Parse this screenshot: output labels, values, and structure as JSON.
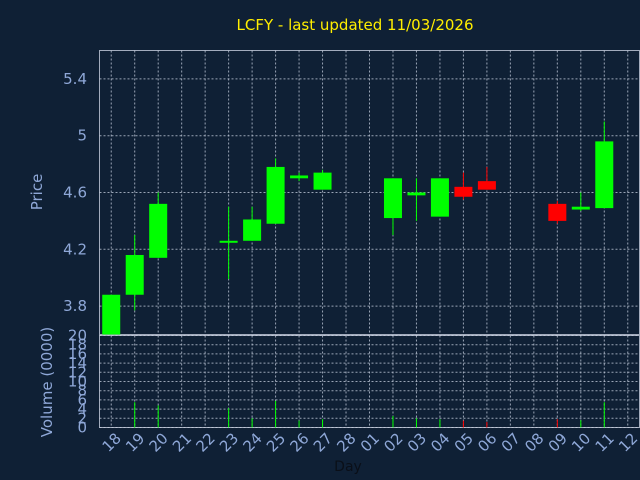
{
  "chart_data": {
    "type": "candlestick",
    "title": "LCFY - last updated 11/03/2026",
    "xlabel": "Day",
    "price_panel": {
      "ylabel": "Price",
      "ylim": [
        3.6,
        5.6
      ],
      "yticks": [
        "3.8",
        "4.2",
        "4.6",
        "5",
        "5.4"
      ],
      "ytick_values": [
        3.8,
        4.2,
        4.6,
        5.0,
        5.4
      ]
    },
    "volume_panel": {
      "ylabel": "Volume (0000)",
      "ylim": [
        0,
        20
      ],
      "yticks": [
        "0",
        "2",
        "4",
        "6",
        "8",
        "10",
        "12",
        "14",
        "16",
        "18",
        "20"
      ],
      "ytick_values": [
        0,
        2,
        4,
        6,
        8,
        10,
        12,
        14,
        16,
        18,
        20
      ]
    },
    "x_labels": [
      "18",
      "19",
      "20",
      "21",
      "22",
      "23",
      "24",
      "25",
      "26",
      "27",
      "28",
      "01",
      "02",
      "03",
      "04",
      "05",
      "06",
      "07",
      "08",
      "09",
      "10",
      "11",
      "12"
    ],
    "candles": [
      {
        "x": 0,
        "open": 3.6,
        "high": 3.88,
        "low": 3.6,
        "close": 3.88,
        "volume": 0
      },
      {
        "x": 1,
        "open": 3.88,
        "high": 4.3,
        "low": 3.77,
        "close": 4.16,
        "volume": 5.5
      },
      {
        "x": 2,
        "open": 4.14,
        "high": 4.6,
        "low": 4.14,
        "close": 4.52,
        "volume": 4.8
      },
      {
        "x": 5,
        "open": 4.25,
        "high": 4.5,
        "low": 3.99,
        "close": 4.26,
        "volume": 4.2
      },
      {
        "x": 6,
        "open": 4.26,
        "high": 4.5,
        "low": 4.26,
        "close": 4.41,
        "volume": 2.0
      },
      {
        "x": 7,
        "open": 4.38,
        "high": 4.84,
        "low": 4.38,
        "close": 4.78,
        "volume": 5.8
      },
      {
        "x": 8,
        "open": 4.7,
        "high": 4.74,
        "low": 4.68,
        "close": 4.72,
        "volume": 1.5
      },
      {
        "x": 9,
        "open": 4.62,
        "high": 4.76,
        "low": 4.62,
        "close": 4.74,
        "volume": 1.8
      },
      {
        "x": 12,
        "open": 4.42,
        "high": 4.7,
        "low": 4.3,
        "close": 4.7,
        "volume": 2.5
      },
      {
        "x": 13,
        "open": 4.58,
        "high": 4.7,
        "low": 4.4,
        "close": 4.6,
        "volume": 2.0
      },
      {
        "x": 14,
        "open": 4.43,
        "high": 4.7,
        "low": 4.43,
        "close": 4.7,
        "volume": 1.8
      },
      {
        "x": 15,
        "open": 4.64,
        "high": 4.74,
        "low": 4.55,
        "close": 4.57,
        "volume": 1.5
      },
      {
        "x": 16,
        "open": 4.68,
        "high": 4.78,
        "low": 4.62,
        "close": 4.62,
        "volume": 1.2
      },
      {
        "x": 19,
        "open": 4.52,
        "high": 4.54,
        "low": 4.38,
        "close": 4.4,
        "volume": 1.8
      },
      {
        "x": 20,
        "open": 4.48,
        "high": 4.6,
        "low": 4.47,
        "close": 4.5,
        "volume": 1.6
      },
      {
        "x": 21,
        "open": 4.49,
        "high": 5.1,
        "low": 4.49,
        "close": 4.96,
        "volume": 5.5
      }
    ],
    "colors": {
      "up": "#00ff00",
      "down": "#ff0000",
      "background": "#0f2035",
      "title": "#ffee00",
      "axis_text": "#8fa8d8"
    },
    "grid": true
  }
}
